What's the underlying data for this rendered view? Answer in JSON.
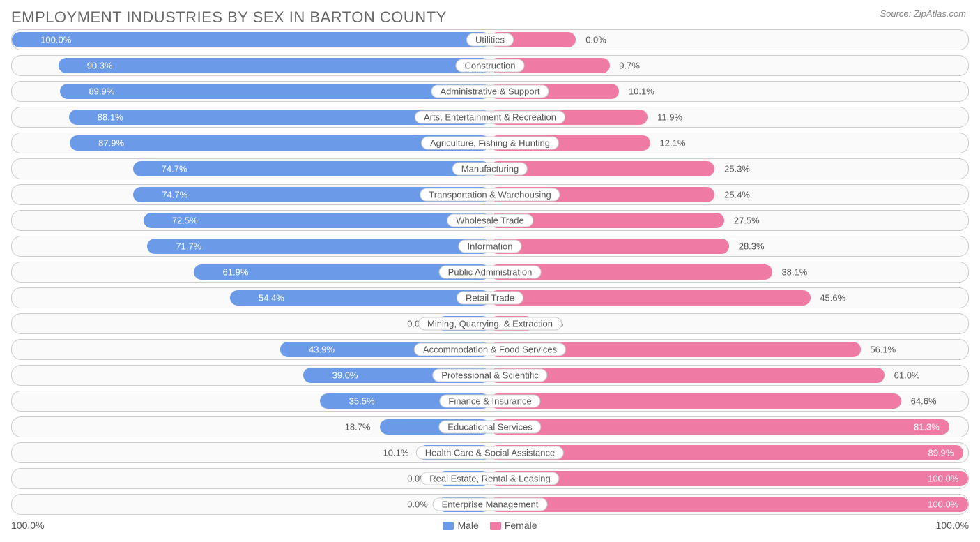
{
  "title": "EMPLOYMENT INDUSTRIES BY SEX IN BARTON COUNTY",
  "source": "Source: ZipAtlas.com",
  "colors": {
    "male": "#6b9be8",
    "female": "#ef7ba4",
    "row_border": "#cccccc",
    "row_bg": "#fafafa",
    "text": "#555555",
    "title": "#666666"
  },
  "chart": {
    "type": "diverging-bar",
    "axis_max": 100.0,
    "left_axis_label": "100.0%",
    "right_axis_label": "100.0%",
    "legend": [
      {
        "label": "Male",
        "color": "#6b9be8"
      },
      {
        "label": "Female",
        "color": "#ef7ba4"
      }
    ],
    "rows": [
      {
        "label": "Utilities",
        "male": 100.0,
        "female": 0.0,
        "male_bar": 100.0,
        "female_bar": 18.0
      },
      {
        "label": "Construction",
        "male": 90.3,
        "female": 9.7,
        "male_bar": 90.3,
        "female_bar": 25.0
      },
      {
        "label": "Administrative & Support",
        "male": 89.9,
        "female": 10.1,
        "male_bar": 89.9,
        "female_bar": 27.0
      },
      {
        "label": "Arts, Entertainment & Recreation",
        "male": 88.1,
        "female": 11.9,
        "male_bar": 88.1,
        "female_bar": 33.0
      },
      {
        "label": "Agriculture, Fishing & Hunting",
        "male": 87.9,
        "female": 12.1,
        "male_bar": 87.9,
        "female_bar": 33.5
      },
      {
        "label": "Manufacturing",
        "male": 74.7,
        "female": 25.3,
        "male_bar": 74.7,
        "female_bar": 47.0
      },
      {
        "label": "Transportation & Warehousing",
        "male": 74.7,
        "female": 25.4,
        "male_bar": 74.6,
        "female_bar": 47.0
      },
      {
        "label": "Wholesale Trade",
        "male": 72.5,
        "female": 27.5,
        "male_bar": 72.5,
        "female_bar": 49.0
      },
      {
        "label": "Information",
        "male": 71.7,
        "female": 28.3,
        "male_bar": 71.7,
        "female_bar": 50.0
      },
      {
        "label": "Public Administration",
        "male": 61.9,
        "female": 38.1,
        "male_bar": 61.9,
        "female_bar": 59.0
      },
      {
        "label": "Retail Trade",
        "male": 54.4,
        "female": 45.6,
        "male_bar": 54.4,
        "female_bar": 67.0
      },
      {
        "label": "Mining, Quarrying, & Extraction",
        "male": 0.0,
        "female": 0.0,
        "male_bar": 11.0,
        "female_bar": 9.0
      },
      {
        "label": "Accommodation & Food Services",
        "male": 43.9,
        "female": 56.1,
        "male_bar": 43.9,
        "female_bar": 77.5
      },
      {
        "label": "Professional & Scientific",
        "male": 39.0,
        "female": 61.0,
        "male_bar": 39.0,
        "female_bar": 82.5
      },
      {
        "label": "Finance & Insurance",
        "male": 35.5,
        "female": 64.6,
        "male_bar": 35.5,
        "female_bar": 86.0
      },
      {
        "label": "Educational Services",
        "male": 18.7,
        "female": 81.3,
        "male_bar": 23.0,
        "female_bar": 96.0
      },
      {
        "label": "Health Care & Social Assistance",
        "male": 10.1,
        "female": 89.9,
        "male_bar": 15.0,
        "female_bar": 99.0
      },
      {
        "label": "Real Estate, Rental & Leasing",
        "male": 0.0,
        "female": 100.0,
        "male_bar": 11.0,
        "female_bar": 100.0
      },
      {
        "label": "Enterprise Management",
        "male": 0.0,
        "female": 100.0,
        "male_bar": 11.0,
        "female_bar": 100.0
      }
    ]
  }
}
